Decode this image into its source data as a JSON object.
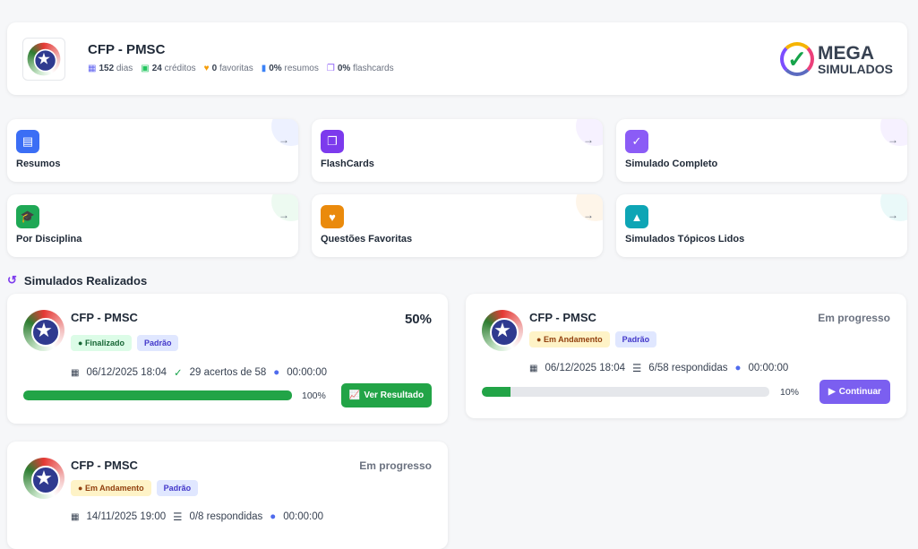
{
  "header": {
    "title": "CFP - PMSC",
    "stats": [
      {
        "icon": "calendar-icon",
        "value": "152",
        "label": "dias",
        "color": "#6366f1"
      },
      {
        "icon": "clipboard-check-icon",
        "value": "24",
        "label": "créditos",
        "color": "#22c55e"
      },
      {
        "icon": "heart-icon",
        "value": "0",
        "label": "favoritas",
        "color": "#f59e0b"
      },
      {
        "icon": "book-icon",
        "value": "0%",
        "label": "resumos",
        "color": "#3b82f6"
      },
      {
        "icon": "copy-icon",
        "value": "0%",
        "label": "flashcards",
        "color": "#8b5cf6"
      }
    ],
    "brand": {
      "line1": "MEGA",
      "line2": "SIMULADOS"
    }
  },
  "actions": [
    {
      "label": "Resumos",
      "icon": "document-icon",
      "color": "#3b6ef5"
    },
    {
      "label": "FlashCards",
      "icon": "cards-icon",
      "color": "#7c3aed"
    },
    {
      "label": "Simulado Completo",
      "icon": "clipboard-icon",
      "color": "#8b5cf6"
    },
    {
      "label": "Por Disciplina",
      "icon": "graduation-cap-icon",
      "color": "#1fa855"
    },
    {
      "label": "Questões Favoritas",
      "icon": "heart-icon",
      "color": "#ea8a0c"
    },
    {
      "label": "Simulados Tópicos Lidos",
      "icon": "reader-icon",
      "color": "#0ea5b5"
    }
  ],
  "section_title": "Simulados Realizados",
  "simulados": [
    {
      "name": "CFP - PMSC",
      "status": "Finalizado",
      "type": "Padrão",
      "right": "50%",
      "date": "06/12/2025 18:04",
      "result": "29 acertos de 58",
      "time": "00:00:00",
      "progress": 100,
      "progress_label": "100%",
      "button": "Ver Resultado"
    },
    {
      "name": "CFP - PMSC",
      "status": "Em Andamento",
      "type": "Padrão",
      "right": "Em progresso",
      "date": "06/12/2025 18:04",
      "result": "6/58 respondidas",
      "time": "00:00:00",
      "progress": 10,
      "progress_label": "10%",
      "button": "Continuar"
    },
    {
      "name": "CFP - PMSC",
      "status": "Em Andamento",
      "type": "Padrão",
      "right": "Em progresso",
      "date": "14/11/2025 19:00",
      "result": "0/8 respondidas",
      "time": "00:00:00"
    }
  ]
}
